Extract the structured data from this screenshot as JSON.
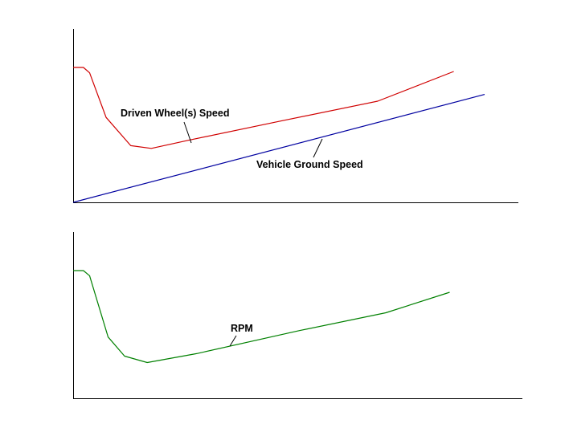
{
  "chart_data": [
    {
      "type": "line",
      "title": "",
      "xlabel": "",
      "ylabel": "",
      "xlim": [
        0,
        100
      ],
      "ylim": [
        0,
        100
      ],
      "grid": false,
      "legend": "none",
      "series": [
        {
          "name": "Driven Wheel(s) Speed",
          "color": "#d00000",
          "points": [
            [
              0,
              100
            ],
            [
              2.5,
              100
            ],
            [
              4,
              96
            ],
            [
              8,
              63
            ],
            [
              14,
              42
            ],
            [
              19,
              40
            ],
            [
              28,
              46
            ],
            [
              50,
              60
            ],
            [
              74,
              75
            ],
            [
              92.5,
              97
            ]
          ]
        },
        {
          "name": "Vehicle Ground Speed",
          "color": "#0000a0",
          "points": [
            [
              0,
              0
            ],
            [
              100,
              80
            ]
          ]
        }
      ],
      "annotations": [
        {
          "text": "Driven Wheel(s) Speed",
          "target_series": 0
        },
        {
          "text": "Vehicle Ground Speed",
          "target_series": 1
        }
      ]
    },
    {
      "type": "line",
      "title": "",
      "xlabel": "",
      "ylabel": "",
      "xlim": [
        0,
        100
      ],
      "ylim": [
        0,
        100
      ],
      "grid": false,
      "legend": "none",
      "series": [
        {
          "name": "RPM",
          "color": "#008000",
          "points": [
            [
              0,
              100
            ],
            [
              2.5,
              100
            ],
            [
              4,
              96
            ],
            [
              8.5,
              48
            ],
            [
              12.5,
              33
            ],
            [
              18,
              28
            ],
            [
              30,
              35
            ],
            [
              55,
              53
            ],
            [
              76,
              67
            ],
            [
              91.5,
              83
            ]
          ]
        }
      ],
      "annotations": [
        {
          "text": "RPM",
          "target_series": 0
        }
      ]
    }
  ]
}
